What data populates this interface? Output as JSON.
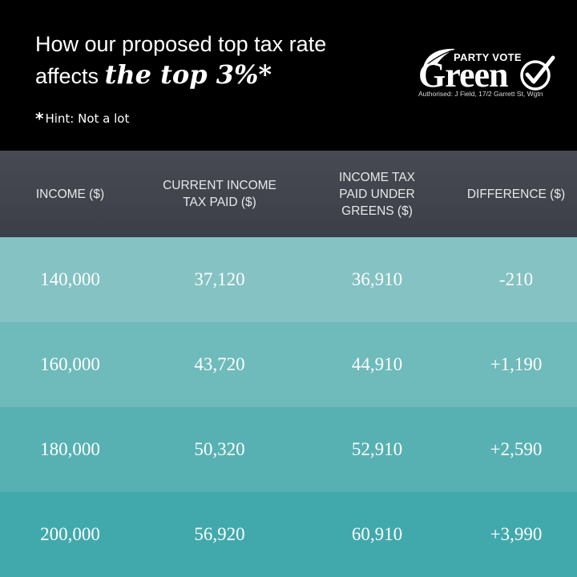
{
  "header": {
    "headline_line1": "How our proposed top tax rate",
    "headline_line2_prefix": "affects ",
    "headline_emphasis": "the top 3%*",
    "hint_star": "*",
    "hint_text": "Hint: Not a lot"
  },
  "logo": {
    "party_vote": "PARTY VOTE",
    "word": "Green",
    "authorised": "Authorised: J Field, 17/2 Garrett St, Wgtn",
    "icons": [
      "leaf-icon",
      "checkmark-circle-icon"
    ]
  },
  "table": {
    "columns": [
      "INCOME ($)",
      "CURRENT INCOME TAX PAID ($)",
      "INCOME TAX PAID UNDER GREENS ($)",
      "DIFFERENCE ($)"
    ],
    "rows": [
      [
        "140,000",
        "37,120",
        "36,910",
        "-210"
      ],
      [
        "160,000",
        "43,720",
        "44,910",
        "+1,190"
      ],
      [
        "180,000",
        "50,320",
        "52,910",
        "+2,590"
      ],
      [
        "200,000",
        "56,920",
        "60,910",
        "+3,990"
      ]
    ]
  },
  "colors": {
    "header_bg": "#000000",
    "table_header_bg": "#42454d",
    "row_colors": [
      "#84c2c3",
      "#6fbabb",
      "#57b1b3",
      "#41a9ac"
    ],
    "text": "#ffffff"
  }
}
